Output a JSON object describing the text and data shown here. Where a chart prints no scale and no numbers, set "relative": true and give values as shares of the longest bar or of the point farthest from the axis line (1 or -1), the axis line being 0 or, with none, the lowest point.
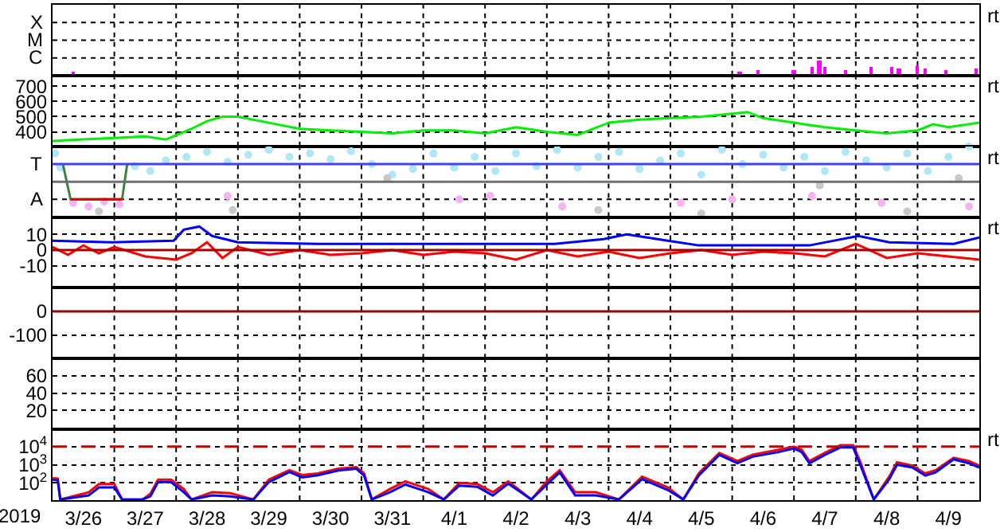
{
  "chart_data": [
    {
      "type": "bar",
      "relative": true,
      "grid": true,
      "tick_labels": false,
      "xlim": [
        "2019-03-26",
        "2019-04-10"
      ],
      "xticks": [
        {
          "value": "2019-03-27",
          "label": null
        },
        {
          "value": "2019-03-28",
          "label": null
        },
        {
          "value": "2019-03-29",
          "label": null
        },
        {
          "value": "2019-03-30",
          "label": null
        },
        {
          "value": "2019-03-31",
          "label": null
        },
        {
          "value": "2019-04-01",
          "label": null
        },
        {
          "value": "2019-04-02",
          "label": null
        },
        {
          "value": "2019-04-03",
          "label": null
        },
        {
          "value": "2019-04-04",
          "label": null
        },
        {
          "value": "2019-04-05",
          "label": null
        },
        {
          "value": "2019-04-06",
          "label": null
        },
        {
          "value": "2019-04-07",
          "label": null
        },
        {
          "value": "2019-04-08",
          "label": null
        },
        {
          "value": "2019-04-09",
          "label": null
        }
      ],
      "annotations": [
        "X",
        "M",
        "C",
        "rt"
      ],
      "series": [
        {
          "color": "#ff00ff",
          "x": [
            "2019-03-26T08:00",
            "2019-04-06T03:00",
            "2019-04-06T10:00",
            "2019-04-07T00:00",
            "2019-04-07T07:00",
            "2019-04-07T10:00",
            "2019-04-07T12:00",
            "2019-04-07T20:00",
            "2019-04-08T06:00",
            "2019-04-08T14:00",
            "2019-04-08T17:00",
            "2019-04-09T00:00",
            "2019-04-09T03:00",
            "2019-04-09T11:00",
            "2019-04-09T23:00"
          ],
          "values": [
            0.2,
            0.2,
            0.3,
            0.3,
            0.6,
            1,
            0.5,
            0.3,
            0.5,
            0.5,
            0.4,
            0.7,
            0.4,
            0.3,
            0.4
          ]
        }
      ]
    },
    {
      "type": "line",
      "grid": true,
      "tick_labels": "y",
      "xlim": [
        "2019-03-26",
        "2019-04-10"
      ],
      "ylim": [
        305,
        770
      ],
      "xticks": [
        {
          "value": "2019-03-27",
          "label": null
        },
        {
          "value": "2019-03-28",
          "label": null
        },
        {
          "value": "2019-03-29",
          "label": null
        },
        {
          "value": "2019-03-30",
          "label": null
        },
        {
          "value": "2019-03-31",
          "label": null
        },
        {
          "value": "2019-04-01",
          "label": null
        },
        {
          "value": "2019-04-02",
          "label": null
        },
        {
          "value": "2019-04-03",
          "label": null
        },
        {
          "value": "2019-04-04",
          "label": null
        },
        {
          "value": "2019-04-05",
          "label": null
        },
        {
          "value": "2019-04-06",
          "label": null
        },
        {
          "value": "2019-04-07",
          "label": null
        },
        {
          "value": "2019-04-08",
          "label": null
        },
        {
          "value": "2019-04-09",
          "label": null
        }
      ],
      "yticks": [
        400,
        500,
        600,
        700
      ],
      "annotations": [
        "rt"
      ],
      "series": [
        {
          "color": "#00ee00",
          "x": [
            "2019-03-26T00:00",
            "2019-03-26T12:00",
            "2019-03-27T00:00",
            "2019-03-27T12:00",
            "2019-03-27T20:00",
            "2019-03-28T06:00",
            "2019-03-28T12:00",
            "2019-03-28T18:00",
            "2019-03-29T00:00",
            "2019-03-29T12:00",
            "2019-03-30T00:00",
            "2019-03-30T12:00",
            "2019-03-31T00:00",
            "2019-03-31T12:00",
            "2019-04-01T00:00",
            "2019-04-01T12:00",
            "2019-04-02T00:00",
            "2019-04-02T12:00",
            "2019-04-03T00:00",
            "2019-04-03T12:00",
            "2019-04-04T00:00",
            "2019-04-04T12:00",
            "2019-04-05T00:00",
            "2019-04-05T12:00",
            "2019-04-06T00:00",
            "2019-04-06T06:00",
            "2019-04-06T12:00",
            "2019-04-07T00:00",
            "2019-04-07T12:00",
            "2019-04-08T00:00",
            "2019-04-08T12:00",
            "2019-04-09T00:00",
            "2019-04-09T06:00",
            "2019-04-09T12:00",
            "2019-04-10T00:00"
          ],
          "values": [
            340,
            350,
            360,
            370,
            350,
            420,
            470,
            500,
            500,
            460,
            420,
            410,
            400,
            390,
            410,
            410,
            390,
            430,
            400,
            380,
            460,
            480,
            490,
            500,
            520,
            530,
            490,
            460,
            430,
            410,
            390,
            410,
            450,
            430,
            460
          ]
        }
      ]
    },
    {
      "type": "scatter",
      "marker": "circle",
      "relative": true,
      "grid": true,
      "tick_labels": false,
      "xlim": [
        "2019-03-26",
        "2019-04-10"
      ],
      "xticks": [
        {
          "value": "2019-03-27",
          "label": null
        },
        {
          "value": "2019-03-28",
          "label": null
        },
        {
          "value": "2019-03-29",
          "label": null
        },
        {
          "value": "2019-03-30",
          "label": null
        },
        {
          "value": "2019-03-31",
          "label": null
        },
        {
          "value": "2019-04-01",
          "label": null
        },
        {
          "value": "2019-04-02",
          "label": null
        },
        {
          "value": "2019-04-03",
          "label": null
        },
        {
          "value": "2019-04-04",
          "label": null
        },
        {
          "value": "2019-04-05",
          "label": null
        },
        {
          "value": "2019-04-06",
          "label": null
        },
        {
          "value": "2019-04-07",
          "label": null
        },
        {
          "value": "2019-04-08",
          "label": null
        },
        {
          "value": "2019-04-09",
          "label": null
        }
      ],
      "ref_lines": [
        {
          "axis": "y",
          "value": 0.75,
          "label": null,
          "color": "#4040ff"
        },
        {
          "axis": "y",
          "value": 0.5,
          "label": null,
          "color": "#707070"
        }
      ],
      "annotations": [
        "T",
        "A",
        "rt"
      ],
      "series": [
        {
          "color": "#b0e6f6",
          "x": [
            "2019-03-26T01:00",
            "2019-03-26T03:00",
            "2019-03-27T08:00",
            "2019-03-27T14:00",
            "2019-03-27T20:00",
            "2019-03-28T04:00",
            "2019-03-28T12:00",
            "2019-03-28T20:00",
            "2019-03-29T04:00",
            "2019-03-29T12:00",
            "2019-03-29T20:00",
            "2019-03-30T04:00",
            "2019-03-30T12:00",
            "2019-03-30T20:00",
            "2019-03-31T04:00",
            "2019-03-31T12:00",
            "2019-03-31T20:00",
            "2019-04-01T04:00",
            "2019-04-01T12:00",
            "2019-04-01T20:00",
            "2019-04-02T04:00",
            "2019-04-02T12:00",
            "2019-04-02T20:00",
            "2019-04-03T04:00",
            "2019-04-03T12:00",
            "2019-04-03T20:00",
            "2019-04-04T04:00",
            "2019-04-04T12:00",
            "2019-04-04T20:00",
            "2019-04-05T04:00",
            "2019-04-05T12:00",
            "2019-04-05T20:00",
            "2019-04-06T04:00",
            "2019-04-06T12:00",
            "2019-04-06T20:00",
            "2019-04-07T04:00",
            "2019-04-07T12:00",
            "2019-04-07T20:00",
            "2019-04-08T04:00",
            "2019-04-08T12:00",
            "2019-04-08T20:00",
            "2019-04-09T04:00",
            "2019-04-09T12:00",
            "2019-04-09T20:00"
          ],
          "values": [
            0.9,
            0.7,
            0.72,
            0.65,
            0.8,
            0.85,
            0.92,
            0.78,
            0.88,
            0.95,
            0.85,
            0.9,
            0.82,
            0.93,
            0.75,
            0.6,
            0.68,
            0.9,
            0.7,
            0.85,
            0.65,
            0.9,
            0.72,
            0.95,
            0.7,
            0.85,
            0.92,
            0.68,
            0.8,
            0.9,
            0.6,
            0.95,
            0.75,
            0.88,
            0.7,
            0.85,
            0.65,
            0.92,
            0.8,
            0.7,
            0.9,
            0.65,
            0.85,
            1
          ]
        },
        {
          "color": "#f4b4f0",
          "x": [
            "2019-03-26T08:00",
            "2019-03-26T14:00",
            "2019-03-26T20:00",
            "2019-03-27T02:00",
            "2019-03-28T20:00",
            "2019-04-01T14:00",
            "2019-04-02T02:00",
            "2019-04-03T06:00",
            "2019-04-05T04:00",
            "2019-04-06T00:00",
            "2019-04-07T07:00",
            "2019-04-08T10:00",
            "2019-04-09T20:00"
          ],
          "values": [
            0.2,
            0.15,
            0.22,
            0.18,
            0.3,
            0.25,
            0.3,
            0.15,
            0.2,
            0.25,
            0.3,
            0.2,
            0.15
          ]
        },
        {
          "color": "#c8c8c8",
          "x": [
            "2019-03-26T18:00",
            "2019-03-28T22:00",
            "2019-03-31T10:00",
            "2019-04-03T20:00",
            "2019-04-05T12:00",
            "2019-04-07T10:00",
            "2019-04-08T20:00",
            "2019-04-09T16:00"
          ],
          "values": [
            0.08,
            0.1,
            0.55,
            0.1,
            0.05,
            0.45,
            0.08,
            0.55
          ]
        },
        {
          "type": "line",
          "marker": "none",
          "color": "#408040",
          "x": [
            "2019-03-26T04:00",
            "2019-03-26T07:00",
            "2019-03-27T03:00",
            "2019-03-27T05:00"
          ],
          "values": [
            0.75,
            0.25,
            0.25,
            0.75
          ]
        },
        {
          "type": "line",
          "marker": "none",
          "color": "#e00000",
          "x": [
            "2019-03-26T07:00",
            "2019-03-27T03:00"
          ],
          "values": [
            0.25,
            0.25
          ]
        }
      ]
    },
    {
      "type": "line",
      "grid": true,
      "tick_labels": "y",
      "xlim": [
        "2019-03-26",
        "2019-04-10"
      ],
      "ylim": [
        -24,
        21
      ],
      "xticks": [
        {
          "value": "2019-03-27",
          "label": null
        },
        {
          "value": "2019-03-28",
          "label": null
        },
        {
          "value": "2019-03-29",
          "label": null
        },
        {
          "value": "2019-03-30",
          "label": null
        },
        {
          "value": "2019-03-31",
          "label": null
        },
        {
          "value": "2019-04-01",
          "label": null
        },
        {
          "value": "2019-04-02",
          "label": null
        },
        {
          "value": "2019-04-03",
          "label": null
        },
        {
          "value": "2019-04-04",
          "label": null
        },
        {
          "value": "2019-04-05",
          "label": null
        },
        {
          "value": "2019-04-06",
          "label": null
        },
        {
          "value": "2019-04-07",
          "label": null
        },
        {
          "value": "2019-04-08",
          "label": null
        },
        {
          "value": "2019-04-09",
          "label": null
        }
      ],
      "yticks": [
        -10,
        0,
        10
      ],
      "ref_lines": [
        {
          "axis": "y",
          "value": 0,
          "label": null,
          "color": "#a00000"
        }
      ],
      "annotations": [
        "rt"
      ],
      "series": [
        {
          "color": "#ff0000",
          "x": [
            "2019-03-26T00:00",
            "2019-03-26T06:00",
            "2019-03-26T12:00",
            "2019-03-26T18:00",
            "2019-03-27T00:00",
            "2019-03-27T12:00",
            "2019-03-28T00:00",
            "2019-03-28T06:00",
            "2019-03-28T12:00",
            "2019-03-28T18:00",
            "2019-03-29T00:00",
            "2019-03-29T12:00",
            "2019-03-30T00:00",
            "2019-03-30T12:00",
            "2019-03-31T00:00",
            "2019-03-31T12:00",
            "2019-04-01T00:00",
            "2019-04-01T12:00",
            "2019-04-02T00:00",
            "2019-04-02T12:00",
            "2019-04-03T00:00",
            "2019-04-03T12:00",
            "2019-04-04T00:00",
            "2019-04-04T12:00",
            "2019-04-05T00:00",
            "2019-04-05T12:00",
            "2019-04-06T00:00",
            "2019-04-06T12:00",
            "2019-04-07T00:00",
            "2019-04-07T12:00",
            "2019-04-08T00:00",
            "2019-04-08T12:00",
            "2019-04-09T00:00",
            "2019-04-09T12:00",
            "2019-04-10T00:00"
          ],
          "values": [
            2,
            -3,
            3,
            -2,
            2,
            -4,
            -6,
            -2,
            5,
            -5,
            2,
            -3,
            0,
            -3,
            -2,
            0,
            -3,
            -1,
            -2,
            -6,
            0,
            -4,
            -1,
            -5,
            -2,
            0,
            -3,
            -1,
            -2,
            -4,
            4,
            -5,
            -2,
            -4,
            -6
          ]
        },
        {
          "color": "#0000ff",
          "x": [
            "2019-03-26T00:00",
            "2019-03-26T23:00",
            "2019-03-27T23:00",
            "2019-03-28T03:00",
            "2019-03-28T09:00",
            "2019-03-28T14:00",
            "2019-03-29T00:00",
            "2019-03-30T07:00",
            "2019-04-02T09:00",
            "2019-04-03T03:00",
            "2019-04-03T22:00",
            "2019-04-04T07:00",
            "2019-04-04T23:00",
            "2019-04-05T11:00",
            "2019-04-07T06:00",
            "2019-04-08T01:00",
            "2019-04-08T13:00",
            "2019-04-09T14:00",
            "2019-04-10T00:00"
          ],
          "values": [
            6,
            5,
            6,
            13,
            15,
            9,
            5,
            4,
            4,
            4,
            7,
            10,
            6,
            3,
            3,
            9,
            5,
            4,
            8
          ]
        }
      ]
    },
    {
      "type": "line",
      "grid": true,
      "tick_labels": "y",
      "xlim": [
        "2019-03-26",
        "2019-04-10"
      ],
      "ylim": [
        -200,
        100
      ],
      "xticks": [
        {
          "value": "2019-03-27",
          "label": null
        },
        {
          "value": "2019-03-28",
          "label": null
        },
        {
          "value": "2019-03-29",
          "label": null
        },
        {
          "value": "2019-03-30",
          "label": null
        },
        {
          "value": "2019-03-31",
          "label": null
        },
        {
          "value": "2019-04-01",
          "label": null
        },
        {
          "value": "2019-04-02",
          "label": null
        },
        {
          "value": "2019-04-03",
          "label": null
        },
        {
          "value": "2019-04-04",
          "label": null
        },
        {
          "value": "2019-04-05",
          "label": null
        },
        {
          "value": "2019-04-06",
          "label": null
        },
        {
          "value": "2019-04-07",
          "label": null
        },
        {
          "value": "2019-04-08",
          "label": null
        },
        {
          "value": "2019-04-09",
          "label": null
        }
      ],
      "yticks": [
        -100,
        0
      ],
      "ref_lines": [
        {
          "axis": "y",
          "value": 0,
          "label": null,
          "color": "#a00000"
        }
      ]
    },
    {
      "type": "line",
      "grid": true,
      "tick_labels": "y",
      "xlim": [
        "2019-03-26",
        "2019-04-10"
      ],
      "ylim": [
        -2,
        80
      ],
      "xticks": [
        {
          "value": "2019-03-27",
          "label": null
        },
        {
          "value": "2019-03-28",
          "label": null
        },
        {
          "value": "2019-03-29",
          "label": null
        },
        {
          "value": "2019-03-30",
          "label": null
        },
        {
          "value": "2019-03-31",
          "label": null
        },
        {
          "value": "2019-04-01",
          "label": null
        },
        {
          "value": "2019-04-02",
          "label": null
        },
        {
          "value": "2019-04-03",
          "label": null
        },
        {
          "value": "2019-04-04",
          "label": null
        },
        {
          "value": "2019-04-05",
          "label": null
        },
        {
          "value": "2019-04-06",
          "label": null
        },
        {
          "value": "2019-04-07",
          "label": null
        },
        {
          "value": "2019-04-08",
          "label": null
        },
        {
          "value": "2019-04-09",
          "label": null
        }
      ],
      "yticks": [
        20,
        40,
        60
      ]
    },
    {
      "type": "line",
      "log": true,
      "grid": true,
      "xlim": [
        "2019-03-26",
        "2019-04-10"
      ],
      "ylim": [
        11,
        90000
      ],
      "xticks": [
        {
          "value": "2019-03-26T12:00",
          "label": "3/26"
        },
        {
          "value": "2019-03-27",
          "label": null
        },
        {
          "value": "2019-03-27T12:00",
          "label": "3/27"
        },
        {
          "value": "2019-03-28",
          "label": null
        },
        {
          "value": "2019-03-28T12:00",
          "label": "3/28"
        },
        {
          "value": "2019-03-29",
          "label": null
        },
        {
          "value": "2019-03-29T12:00",
          "label": "3/29"
        },
        {
          "value": "2019-03-30",
          "label": null
        },
        {
          "value": "2019-03-30T12:00",
          "label": "3/30"
        },
        {
          "value": "2019-03-31",
          "label": null
        },
        {
          "value": "2019-03-31T12:00",
          "label": "3/31"
        },
        {
          "value": "2019-04-01",
          "label": null
        },
        {
          "value": "2019-04-01T12:00",
          "label": "4/1"
        },
        {
          "value": "2019-04-02",
          "label": null
        },
        {
          "value": "2019-04-02T12:00",
          "label": "4/2"
        },
        {
          "value": "2019-04-03",
          "label": null
        },
        {
          "value": "2019-04-03T12:00",
          "label": "4/3"
        },
        {
          "value": "2019-04-04",
          "label": null
        },
        {
          "value": "2019-04-04T12:00",
          "label": "4/4"
        },
        {
          "value": "2019-04-05",
          "label": null
        },
        {
          "value": "2019-04-05T12:00",
          "label": "4/5"
        },
        {
          "value": "2019-04-06",
          "label": null
        },
        {
          "value": "2019-04-06T12:00",
          "label": "4/6"
        },
        {
          "value": "2019-04-07",
          "label": null
        },
        {
          "value": "2019-04-07T12:00",
          "label": "4/7"
        },
        {
          "value": "2019-04-08",
          "label": null
        },
        {
          "value": "2019-04-08T12:00",
          "label": "4/8"
        },
        {
          "value": "2019-04-09",
          "label": null
        },
        {
          "value": "2019-04-09T12:00",
          "label": "4/9"
        }
      ],
      "yticks": [
        {
          "value": 100,
          "label": "10$^{2}$"
        },
        {
          "value": 1000,
          "label": "10$^{3}$"
        },
        {
          "value": 10000,
          "label": "10$^{4}$"
        }
      ],
      "ref_lines": [
        {
          "axis": "y",
          "value": 10000,
          "label": null,
          "color": "#c00000",
          "line_style": "dashed"
        }
      ],
      "xlabel": "2019",
      "annotations": [
        "rt"
      ],
      "series": [
        {
          "color": "#ff0000",
          "x": [
            "2019-03-26T00:00",
            "2019-03-26T02:00",
            "2019-03-26T03:00",
            "2019-03-26T14:00",
            "2019-03-26T18:00",
            "2019-03-27T00:00",
            "2019-03-27T03:00",
            "2019-03-27T11:00",
            "2019-03-27T14:00",
            "2019-03-27T17:00",
            "2019-03-27T22:00",
            "2019-03-28T03:00",
            "2019-03-28T06:00",
            "2019-03-28T14:00",
            "2019-03-28T21:00",
            "2019-03-29T06:00",
            "2019-03-29T12:00",
            "2019-03-29T20:00",
            "2019-03-30T01:00",
            "2019-03-30T07:00",
            "2019-03-30T15:00",
            "2019-03-30T22:00",
            "2019-03-31T01:00",
            "2019-03-31T04:00",
            "2019-03-31T11:00",
            "2019-03-31T17:00",
            "2019-04-01T02:00",
            "2019-04-01T08:00",
            "2019-04-01T14:00",
            "2019-04-01T21:00",
            "2019-04-02T03:00",
            "2019-04-02T09:00",
            "2019-04-02T18:00",
            "2019-04-03T00:00",
            "2019-04-03T05:00",
            "2019-04-03T11:00",
            "2019-04-03T19:00",
            "2019-04-04T04:00",
            "2019-04-04T13:00",
            "2019-04-04T23:00",
            "2019-04-05T05:00",
            "2019-04-05T11:00",
            "2019-04-05T19:00",
            "2019-04-06T02:00",
            "2019-04-06T08:00",
            "2019-04-06T18:00",
            "2019-04-07T00:00",
            "2019-04-07T03:00",
            "2019-04-07T06:00",
            "2019-04-07T12:00",
            "2019-04-07T18:00",
            "2019-04-07T23:00",
            "2019-04-08T02:00",
            "2019-04-08T07:00",
            "2019-04-08T13:00",
            "2019-04-08T16:00",
            "2019-04-08T22:00",
            "2019-04-09T03:00",
            "2019-04-09T07:00",
            "2019-04-09T14:00",
            "2019-04-09T20:00",
            "2019-04-10T00:00"
          ],
          "values": [
            180,
            170,
            12,
            30,
            85,
            85,
            12,
            12,
            25,
            150,
            150,
            45,
            12,
            30,
            27,
            12,
            150,
            500,
            270,
            330,
            600,
            740,
            330,
            12,
            45,
            120,
            45,
            12,
            100,
            85,
            30,
            120,
            12,
            120,
            500,
            30,
            30,
            12,
            220,
            55,
            12,
            330,
            4500,
            1600,
            3600,
            6700,
            10000,
            6700,
            1600,
            4500,
            12000,
            12000,
            1200,
            12,
            220,
            1350,
            900,
            330,
            500,
            2400,
            1600,
            900
          ]
        },
        {
          "color": "#0000ff",
          "x": [
            "2019-03-26T00:00",
            "2019-03-26T02:00",
            "2019-03-26T03:00",
            "2019-03-26T14:00",
            "2019-03-26T18:00",
            "2019-03-27T00:00",
            "2019-03-27T03:00",
            "2019-03-27T11:00",
            "2019-03-27T14:00",
            "2019-03-27T17:00",
            "2019-03-27T22:00",
            "2019-03-28T03:00",
            "2019-03-28T06:00",
            "2019-03-28T14:00",
            "2019-03-28T21:00",
            "2019-03-29T06:00",
            "2019-03-29T12:00",
            "2019-03-29T20:00",
            "2019-03-30T01:00",
            "2019-03-30T07:00",
            "2019-03-30T15:00",
            "2019-03-30T22:00",
            "2019-03-31T01:00",
            "2019-03-31T04:00",
            "2019-03-31T11:00",
            "2019-03-31T17:00",
            "2019-04-01T02:00",
            "2019-04-01T08:00",
            "2019-04-01T14:00",
            "2019-04-01T21:00",
            "2019-04-02T03:00",
            "2019-04-02T09:00",
            "2019-04-02T18:00",
            "2019-04-03T00:00",
            "2019-04-03T05:00",
            "2019-04-03T11:00",
            "2019-04-03T19:00",
            "2019-04-04T04:00",
            "2019-04-04T13:00",
            "2019-04-04T23:00",
            "2019-04-05T05:00",
            "2019-04-05T11:00",
            "2019-04-05T19:00",
            "2019-04-06T02:00",
            "2019-04-06T08:00",
            "2019-04-06T18:00",
            "2019-04-07T00:00",
            "2019-04-07T03:00",
            "2019-04-07T06:00",
            "2019-04-07T12:00",
            "2019-04-07T18:00",
            "2019-04-07T23:00",
            "2019-04-08T02:00",
            "2019-04-08T07:00",
            "2019-04-08T13:00",
            "2019-04-08T16:00",
            "2019-04-08T22:00",
            "2019-04-09T03:00",
            "2019-04-09T07:00",
            "2019-04-09T14:00",
            "2019-04-09T20:00",
            "2019-04-10T00:00"
          ],
          "values": [
            150,
            140,
            12,
            20,
            55,
            55,
            12,
            12,
            18,
            110,
            110,
            30,
            12,
            20,
            18,
            12,
            110,
            400,
            200,
            260,
            480,
            600,
            250,
            12,
            30,
            80,
            30,
            12,
            70,
            60,
            20,
            90,
            12,
            80,
            380,
            20,
            20,
            12,
            160,
            40,
            12,
            250,
            3500,
            1200,
            2800,
            5000,
            8000,
            5000,
            1200,
            3500,
            9000,
            9000,
            800,
            12,
            160,
            1000,
            700,
            250,
            380,
            2000,
            1200,
            700
          ]
        }
      ]
    }
  ]
}
